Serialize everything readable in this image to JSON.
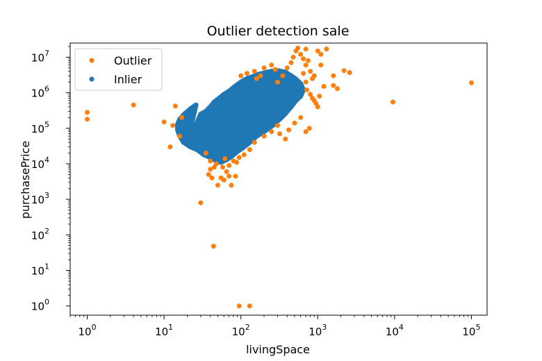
{
  "chart_data": {
    "type": "scatter",
    "title": "Outlier detection sale",
    "xlabel": "livingSpace",
    "ylabel": "purchasePrice",
    "xscale": "log",
    "yscale": "log",
    "xlim": [
      0.6,
      160000
    ],
    "ylim": [
      0.55,
      25000000
    ],
    "x_ticks": [
      {
        "value": 1,
        "base": "10",
        "exp": "0"
      },
      {
        "value": 10,
        "base": "10",
        "exp": "1"
      },
      {
        "value": 100,
        "base": "10",
        "exp": "2"
      },
      {
        "value": 1000,
        "base": "10",
        "exp": "3"
      },
      {
        "value": 10000,
        "base": "10",
        "exp": "4"
      },
      {
        "value": 100000,
        "base": "10",
        "exp": "5"
      }
    ],
    "y_ticks": [
      {
        "value": 1,
        "base": "10",
        "exp": "0"
      },
      {
        "value": 10,
        "base": "10",
        "exp": "1"
      },
      {
        "value": 100,
        "base": "10",
        "exp": "2"
      },
      {
        "value": 1000,
        "base": "10",
        "exp": "3"
      },
      {
        "value": 10000,
        "base": "10",
        "exp": "4"
      },
      {
        "value": 100000,
        "base": "10",
        "exp": "5"
      },
      {
        "value": 1000000,
        "base": "10",
        "exp": "6"
      },
      {
        "value": 10000000,
        "base": "10",
        "exp": "7"
      }
    ],
    "grid": false,
    "legend_position": "top-left",
    "series": [
      {
        "name": "Outlier",
        "color": "#ff7f0e",
        "points": [
          [
            1,
            280000
          ],
          [
            1,
            180000
          ],
          [
            4,
            450000
          ],
          [
            10,
            150000
          ],
          [
            13,
            120000
          ],
          [
            14,
            420000
          ],
          [
            12,
            30000
          ],
          [
            17,
            200000
          ],
          [
            16,
            60000
          ],
          [
            30,
            800
          ],
          [
            44,
            48
          ],
          [
            95,
            1
          ],
          [
            130,
            1
          ],
          [
            38,
            5000
          ],
          [
            42,
            4000
          ],
          [
            45,
            8000
          ],
          [
            50,
            2500
          ],
          [
            55,
            4000
          ],
          [
            60,
            3500
          ],
          [
            65,
            6000
          ],
          [
            70,
            4500
          ],
          [
            75,
            2500
          ],
          [
            85,
            4500
          ],
          [
            40,
            12000
          ],
          [
            48,
            10000
          ],
          [
            58,
            8000
          ],
          [
            70,
            9000
          ],
          [
            80,
            12000
          ],
          [
            95,
            15000
          ],
          [
            110,
            18000
          ],
          [
            130,
            25000
          ],
          [
            35,
            20000
          ],
          [
            40,
            7000
          ],
          [
            62,
            14000
          ],
          [
            88,
            11000
          ],
          [
            150,
            40000
          ],
          [
            200,
            60000
          ],
          [
            250,
            80000
          ],
          [
            300,
            120000
          ],
          [
            320,
            70000
          ],
          [
            380,
            50000
          ],
          [
            420,
            90000
          ],
          [
            500,
            140000
          ],
          [
            600,
            200000
          ],
          [
            700,
            80000
          ],
          [
            780,
            100000
          ],
          [
            300,
            2000000
          ],
          [
            350,
            3000000
          ],
          [
            400,
            5000000
          ],
          [
            450,
            7000000
          ],
          [
            480,
            10000000
          ],
          [
            520,
            15000000
          ],
          [
            550,
            18000000
          ],
          [
            600,
            12000000
          ],
          [
            650,
            9000000
          ],
          [
            700,
            6000000
          ],
          [
            750,
            8000000
          ],
          [
            800,
            4000000
          ],
          [
            850,
            2500000
          ],
          [
            900,
            3000000
          ],
          [
            650,
            3500000
          ],
          [
            700,
            2000000
          ],
          [
            720,
            1200000
          ],
          [
            800,
            900000
          ],
          [
            850,
            700000
          ],
          [
            900,
            600000
          ],
          [
            950,
            500000
          ],
          [
            1000,
            400000
          ],
          [
            1050,
            800000
          ],
          [
            1200,
            1500000
          ],
          [
            1000,
            15000000
          ],
          [
            1100,
            12000000
          ],
          [
            1300,
            17000000
          ],
          [
            1100,
            6000000
          ],
          [
            700,
            17000000
          ],
          [
            100,
            3000000
          ],
          [
            120,
            3500000
          ],
          [
            150,
            4000000
          ],
          [
            180,
            3000000
          ],
          [
            200,
            5000000
          ],
          [
            250,
            6000000
          ],
          [
            280,
            4500000
          ],
          [
            160,
            2500000
          ],
          [
            1600,
            1600000
          ],
          [
            1800,
            1300000
          ],
          [
            2200,
            4200000
          ],
          [
            2600,
            3700000
          ],
          [
            1600,
            3000000
          ],
          [
            9500,
            550000
          ],
          [
            100000,
            1900000
          ]
        ]
      },
      {
        "name": "Inlier",
        "color": "#1f77b4",
        "points": [
          [
            20,
            40000
          ],
          [
            22,
            60000
          ],
          [
            25,
            100000
          ],
          [
            28,
            180000
          ],
          [
            30,
            250000
          ],
          [
            35,
            300000
          ],
          [
            40,
            400000
          ],
          [
            45,
            550000
          ],
          [
            50,
            650000
          ],
          [
            60,
            900000
          ],
          [
            70,
            1100000
          ],
          [
            80,
            1400000
          ],
          [
            90,
            1700000
          ],
          [
            100,
            2000000
          ],
          [
            120,
            2500000
          ],
          [
            140,
            2800000
          ],
          [
            170,
            3300000
          ],
          [
            200,
            3600000
          ],
          [
            250,
            4000000
          ],
          [
            300,
            4200000
          ],
          [
            380,
            3800000
          ],
          [
            450,
            3000000
          ],
          [
            520,
            2400000
          ],
          [
            600,
            1800000
          ],
          [
            650,
            1200000
          ],
          [
            600,
            800000
          ],
          [
            520,
            600000
          ],
          [
            450,
            400000
          ],
          [
            380,
            260000
          ],
          [
            320,
            180000
          ],
          [
            260,
            120000
          ],
          [
            200,
            80000
          ],
          [
            160,
            60000
          ],
          [
            130,
            40000
          ],
          [
            110,
            30000
          ],
          [
            90,
            22000
          ],
          [
            75,
            16000
          ],
          [
            65,
            13000
          ],
          [
            55,
            11000
          ],
          [
            48,
            12000
          ],
          [
            40,
            15000
          ],
          [
            33,
            18000
          ],
          [
            27,
            25000
          ],
          [
            22,
            30000
          ],
          [
            18,
            40000
          ],
          [
            16,
            60000
          ],
          [
            15,
            90000
          ],
          [
            15,
            130000
          ],
          [
            16,
            180000
          ],
          [
            18,
            240000
          ],
          [
            22,
            350000
          ],
          [
            26,
            450000
          ]
        ]
      }
    ]
  }
}
